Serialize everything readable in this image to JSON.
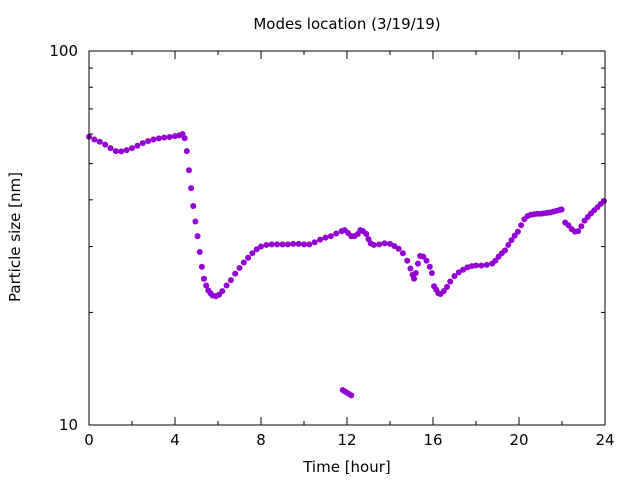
{
  "chart_data": {
    "type": "scatter",
    "title": "Modes location (3/19/19)",
    "xlabel": "Time [hour]",
    "ylabel": "Particle size [nm]",
    "xlim": [
      0,
      24
    ],
    "ylim": [
      10,
      100
    ],
    "yscale": "log",
    "grid": false,
    "x_ticks": [
      0,
      4,
      8,
      12,
      16,
      20,
      24
    ],
    "x_tick_labels": [
      "0",
      "4",
      "8",
      "12",
      "16",
      "20",
      "24"
    ],
    "y_ticks": [
      10,
      100
    ],
    "y_tick_labels": [
      "10",
      "100"
    ],
    "marker_color": "#9400d3",
    "series": [
      {
        "name": "",
        "points": [
          [
            0.0,
            59.0
          ],
          [
            0.25,
            58.0
          ],
          [
            0.5,
            57.2
          ],
          [
            0.75,
            56.2
          ],
          [
            1.0,
            55.0
          ],
          [
            1.25,
            54.0
          ],
          [
            1.5,
            53.9
          ],
          [
            1.75,
            54.3
          ],
          [
            2.0,
            55.0
          ],
          [
            2.25,
            55.8
          ],
          [
            2.5,
            56.7
          ],
          [
            2.75,
            57.4
          ],
          [
            3.0,
            58.0
          ],
          [
            3.25,
            58.4
          ],
          [
            3.5,
            58.7
          ],
          [
            3.75,
            58.9
          ],
          [
            4.0,
            59.2
          ],
          [
            4.2,
            59.5
          ],
          [
            4.35,
            60.0
          ],
          [
            4.45,
            58.5
          ],
          [
            4.55,
            54.0
          ],
          [
            4.65,
            48.0
          ],
          [
            4.75,
            43.0
          ],
          [
            4.85,
            38.5
          ],
          [
            4.95,
            35.0
          ],
          [
            5.05,
            32.0
          ],
          [
            5.15,
            29.0
          ],
          [
            5.25,
            26.5
          ],
          [
            5.35,
            24.6
          ],
          [
            5.45,
            23.6
          ],
          [
            5.55,
            22.9
          ],
          [
            5.65,
            22.5
          ],
          [
            5.75,
            22.2
          ],
          [
            5.9,
            22.1
          ],
          [
            6.05,
            22.3
          ],
          [
            6.2,
            22.8
          ],
          [
            6.4,
            23.6
          ],
          [
            6.6,
            24.4
          ],
          [
            6.8,
            25.4
          ],
          [
            7.0,
            26.3
          ],
          [
            7.2,
            27.2
          ],
          [
            7.4,
            28.0
          ],
          [
            7.6,
            28.8
          ],
          [
            7.8,
            29.5
          ],
          [
            8.0,
            30.0
          ],
          [
            8.25,
            30.3
          ],
          [
            8.5,
            30.4
          ],
          [
            8.75,
            30.4
          ],
          [
            9.0,
            30.4
          ],
          [
            9.25,
            30.4
          ],
          [
            9.5,
            30.5
          ],
          [
            9.75,
            30.5
          ],
          [
            10.0,
            30.4
          ],
          [
            10.25,
            30.4
          ],
          [
            10.5,
            30.8
          ],
          [
            10.75,
            31.3
          ],
          [
            11.0,
            31.7
          ],
          [
            11.25,
            32.0
          ],
          [
            11.5,
            32.5
          ],
          [
            11.75,
            33.0
          ],
          [
            11.9,
            33.2
          ],
          [
            12.05,
            32.6
          ],
          [
            12.2,
            32.0
          ],
          [
            12.35,
            32.0
          ],
          [
            12.5,
            32.4
          ],
          [
            12.62,
            33.2
          ],
          [
            12.75,
            33.0
          ],
          [
            12.9,
            32.4
          ],
          [
            13.0,
            31.4
          ],
          [
            13.1,
            30.6
          ],
          [
            13.25,
            30.3
          ],
          [
            13.5,
            30.4
          ],
          [
            13.75,
            30.6
          ],
          [
            14.0,
            30.5
          ],
          [
            14.2,
            30.1
          ],
          [
            14.4,
            29.6
          ],
          [
            14.6,
            28.8
          ],
          [
            14.8,
            27.5
          ],
          [
            14.95,
            26.2
          ],
          [
            15.05,
            25.2
          ],
          [
            15.12,
            24.6
          ],
          [
            15.2,
            25.5
          ],
          [
            15.3,
            27.0
          ],
          [
            15.4,
            28.3
          ],
          [
            15.55,
            28.2
          ],
          [
            15.7,
            27.5
          ],
          [
            15.85,
            26.5
          ],
          [
            15.95,
            25.5
          ],
          [
            16.05,
            23.5
          ],
          [
            16.15,
            23.0
          ],
          [
            16.25,
            22.5
          ],
          [
            16.35,
            22.4
          ],
          [
            16.5,
            22.8
          ],
          [
            16.65,
            23.4
          ],
          [
            16.8,
            24.2
          ],
          [
            17.0,
            25.0
          ],
          [
            17.2,
            25.6
          ],
          [
            17.4,
            26.0
          ],
          [
            17.6,
            26.4
          ],
          [
            17.8,
            26.6
          ],
          [
            18.0,
            26.7
          ],
          [
            18.25,
            26.7
          ],
          [
            18.5,
            26.8
          ],
          [
            18.75,
            27.0
          ],
          [
            18.9,
            27.5
          ],
          [
            19.05,
            28.2
          ],
          [
            19.2,
            28.8
          ],
          [
            19.35,
            29.3
          ],
          [
            19.5,
            30.3
          ],
          [
            19.65,
            31.2
          ],
          [
            19.8,
            32.1
          ],
          [
            19.95,
            32.9
          ],
          [
            20.1,
            34.2
          ],
          [
            20.25,
            35.5
          ],
          [
            20.4,
            36.2
          ],
          [
            20.55,
            36.5
          ],
          [
            20.7,
            36.6
          ],
          [
            20.85,
            36.7
          ],
          [
            21.0,
            36.7
          ],
          [
            21.15,
            36.8
          ],
          [
            21.3,
            36.9
          ],
          [
            21.45,
            37.0
          ],
          [
            21.6,
            37.2
          ],
          [
            21.75,
            37.4
          ],
          [
            21.9,
            37.6
          ],
          [
            21.98,
            37.7
          ],
          [
            22.15,
            34.8
          ],
          [
            22.3,
            34.2
          ],
          [
            22.45,
            33.4
          ],
          [
            22.6,
            32.9
          ],
          [
            22.75,
            33.0
          ],
          [
            22.9,
            34.0
          ],
          [
            23.05,
            35.2
          ],
          [
            23.2,
            36.0
          ],
          [
            23.35,
            36.8
          ],
          [
            23.5,
            37.5
          ],
          [
            23.65,
            38.2
          ],
          [
            23.8,
            39.0
          ],
          [
            23.95,
            39.7
          ],
          [
            11.8,
            12.4
          ],
          [
            11.9,
            12.3
          ],
          [
            12.0,
            12.2
          ],
          [
            12.1,
            12.1
          ],
          [
            12.2,
            12.0
          ]
        ]
      }
    ]
  }
}
